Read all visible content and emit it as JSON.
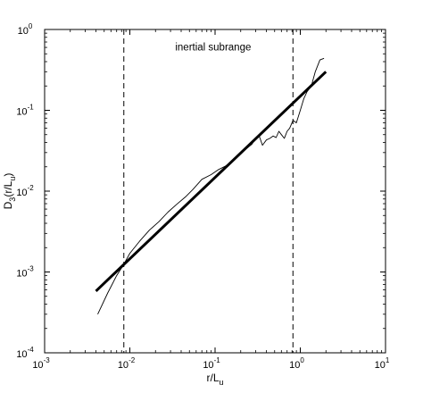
{
  "chart_data": {
    "type": "line",
    "xlabel": {
      "main": "r/L",
      "sub": "u"
    },
    "ylabel": {
      "prefix": "D",
      "sub": "3",
      "mid": "(r/L",
      "sub2": "u",
      "suffix": ")"
    },
    "x_scale": "log",
    "y_scale": "log",
    "xlim": [
      0.001,
      10
    ],
    "ylim": [
      0.0001,
      1
    ],
    "x_ticks": [
      {
        "value": 0.001,
        "base": "10",
        "exp": "-3"
      },
      {
        "value": 0.01,
        "base": "10",
        "exp": "-2"
      },
      {
        "value": 0.1,
        "base": "10",
        "exp": "-1"
      },
      {
        "value": 1,
        "base": "10",
        "exp": "0"
      },
      {
        "value": 10,
        "base": "10",
        "exp": "1"
      }
    ],
    "y_ticks": [
      {
        "value": 0.0001,
        "base": "10",
        "exp": "-4"
      },
      {
        "value": 0.001,
        "base": "10",
        "exp": "-3"
      },
      {
        "value": 0.01,
        "base": "10",
        "exp": "-2"
      },
      {
        "value": 0.1,
        "base": "10",
        "exp": "-1"
      },
      {
        "value": 1,
        "base": "10",
        "exp": "0"
      }
    ],
    "grid": false,
    "annotations": [
      {
        "text": "inertial subrange",
        "x": 0.095,
        "y": 0.55
      }
    ],
    "vertical_lines": [
      0.0085,
      0.82
    ],
    "series": [
      {
        "style": "thin-solid",
        "x": [
          0.0042,
          0.0055,
          0.007,
          0.0085,
          0.01,
          0.013,
          0.017,
          0.022,
          0.028,
          0.035,
          0.045,
          0.055,
          0.07,
          0.09,
          0.11,
          0.14,
          0.18,
          0.22,
          0.27,
          0.3,
          0.33,
          0.36,
          0.4,
          0.44,
          0.48,
          0.52,
          0.56,
          0.6,
          0.65,
          0.7,
          0.75,
          0.82,
          0.9,
          1.0,
          1.1,
          1.2,
          1.35,
          1.5,
          1.7,
          1.9
        ],
        "y": [
          0.0003,
          0.00055,
          0.0009,
          0.00125,
          0.0017,
          0.0024,
          0.0033,
          0.0042,
          0.0055,
          0.0068,
          0.0085,
          0.0105,
          0.014,
          0.016,
          0.0185,
          0.021,
          0.026,
          0.032,
          0.038,
          0.045,
          0.048,
          0.037,
          0.043,
          0.045,
          0.048,
          0.046,
          0.055,
          0.05,
          0.045,
          0.055,
          0.06,
          0.075,
          0.07,
          0.1,
          0.14,
          0.17,
          0.2,
          0.3,
          0.42,
          0.44
        ]
      },
      {
        "style": "thick-solid",
        "x": [
          0.004,
          2.0
        ],
        "y": [
          0.00058,
          0.3
        ]
      }
    ]
  }
}
